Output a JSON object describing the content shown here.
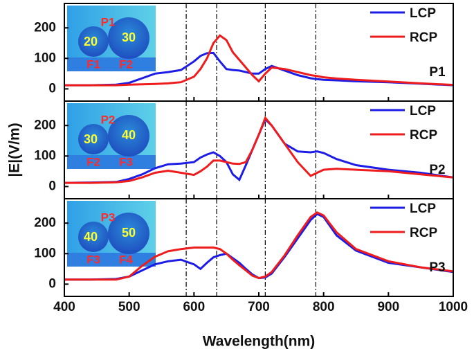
{
  "chart_data": [
    {
      "type": "line",
      "panel_label": "P1",
      "inset": {
        "top": "P1",
        "left": "20",
        "right": "30",
        "bottom_left": "F1",
        "bottom_right": "F2"
      },
      "x": [
        400,
        440,
        480,
        500,
        520,
        540,
        560,
        580,
        600,
        610,
        620,
        630,
        640,
        650,
        660,
        670,
        680,
        690,
        700,
        710,
        720,
        740,
        760,
        780,
        790,
        800,
        820,
        850,
        900,
        950,
        1000
      ],
      "series": [
        {
          "name": "LCP",
          "color": "#1c1ce6",
          "values": [
            12,
            12,
            14,
            20,
            35,
            50,
            55,
            62,
            90,
            108,
            117,
            118,
            90,
            65,
            62,
            60,
            55,
            50,
            50,
            65,
            75,
            60,
            45,
            35,
            32,
            30,
            28,
            25,
            22,
            17,
            12
          ]
        },
        {
          "name": "RCP",
          "color": "#ee1c1c",
          "values": [
            12,
            12,
            12,
            14,
            15,
            16,
            18,
            22,
            40,
            65,
            100,
            150,
            175,
            160,
            120,
            95,
            70,
            45,
            25,
            50,
            70,
            65,
            55,
            45,
            42,
            38,
            34,
            30,
            24,
            18,
            13
          ]
        }
      ],
      "ylim": [
        -40,
        280
      ],
      "yticks": [
        0,
        100,
        200
      ],
      "reference_lines": [
        588,
        635,
        710,
        788
      ]
    },
    {
      "type": "line",
      "panel_label": "P2",
      "ylabel": "|E|(V/m)",
      "inset": {
        "top": "P2",
        "left": "30",
        "right": "40",
        "bottom_left": "F2",
        "bottom_right": "F3"
      },
      "x": [
        400,
        440,
        480,
        500,
        520,
        540,
        560,
        580,
        600,
        610,
        620,
        630,
        640,
        650,
        660,
        670,
        680,
        690,
        700,
        710,
        720,
        740,
        760,
        780,
        790,
        800,
        820,
        850,
        900,
        950,
        1000
      ],
      "series": [
        {
          "name": "LCP",
          "color": "#1c1ce6",
          "values": [
            12,
            13,
            15,
            25,
            40,
            60,
            73,
            75,
            80,
            95,
            105,
            112,
            100,
            80,
            40,
            22,
            70,
            120,
            170,
            220,
            200,
            140,
            115,
            112,
            115,
            110,
            90,
            70,
            55,
            45,
            30
          ]
        },
        {
          "name": "RCP",
          "color": "#ee1c1c",
          "values": [
            12,
            12,
            14,
            18,
            30,
            45,
            52,
            45,
            38,
            50,
            65,
            85,
            85,
            80,
            75,
            74,
            80,
            120,
            170,
            225,
            200,
            140,
            80,
            35,
            45,
            55,
            58,
            55,
            50,
            40,
            30
          ]
        }
      ],
      "ylim": [
        -40,
        280
      ],
      "yticks": [
        0,
        100,
        200
      ],
      "reference_lines": [
        588,
        635,
        710,
        788
      ]
    },
    {
      "type": "line",
      "panel_label": "P3",
      "xlabel": "Wavelength(nm)",
      "inset": {
        "top": "P3",
        "left": "40",
        "right": "50",
        "bottom_left": "F3",
        "bottom_right": "F4"
      },
      "x": [
        400,
        440,
        480,
        500,
        520,
        540,
        560,
        580,
        600,
        610,
        620,
        630,
        640,
        650,
        660,
        670,
        680,
        690,
        700,
        710,
        720,
        740,
        760,
        780,
        790,
        800,
        820,
        850,
        900,
        950,
        1000
      ],
      "series": [
        {
          "name": "LCP",
          "color": "#1c1ce6",
          "values": [
            15,
            15,
            17,
            25,
            45,
            65,
            75,
            80,
            65,
            50,
            70,
            88,
            95,
            100,
            85,
            70,
            50,
            32,
            20,
            22,
            35,
            90,
            150,
            210,
            230,
            220,
            160,
            110,
            70,
            55,
            40
          ]
        },
        {
          "name": "RCP",
          "color": "#ee1c1c",
          "values": [
            15,
            15,
            15,
            25,
            60,
            90,
            108,
            115,
            120,
            120,
            120,
            120,
            115,
            100,
            80,
            62,
            45,
            28,
            20,
            25,
            40,
            95,
            160,
            220,
            235,
            225,
            170,
            115,
            75,
            55,
            42
          ]
        }
      ],
      "ylim": [
        -40,
        280
      ],
      "yticks": [
        0,
        100,
        200
      ],
      "reference_lines": [
        588,
        635,
        710,
        788
      ],
      "xlim": [
        400,
        1000
      ],
      "xticks": [
        400,
        500,
        600,
        700,
        800,
        900,
        1000
      ]
    }
  ]
}
